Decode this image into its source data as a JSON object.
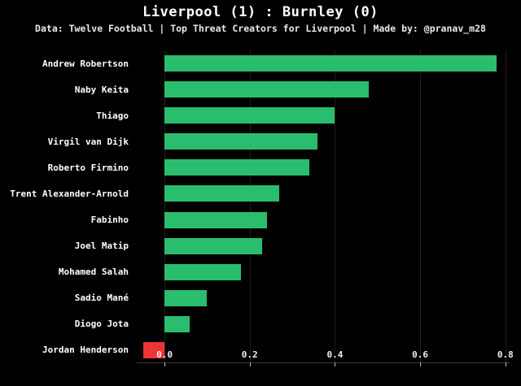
{
  "header": {
    "title": "Liverpool (1) : Burnley (0)",
    "subtitle": "Data: Twelve Football | Top Threat Creators for Liverpool | Made by: @pranav_m28"
  },
  "chart_data": {
    "type": "bar",
    "orientation": "horizontal",
    "title": "Liverpool (1) : Burnley (0)",
    "subtitle": "Data: Twelve Football | Top Threat Creators for Liverpool | Made by: @pranav_m28",
    "categories": [
      "Andrew Robertson",
      "Naby Keita",
      "Thiago",
      "Virgil van Dijk",
      "Roberto Firmino",
      "Trent Alexander-Arnold",
      "Fabinho",
      "Joel Matip",
      "Mohamed Salah",
      "Sadio Mané",
      "Diogo Jota",
      "Jordan Henderson"
    ],
    "values": [
      0.78,
      0.48,
      0.4,
      0.36,
      0.34,
      0.27,
      0.24,
      0.23,
      0.18,
      0.1,
      0.06,
      -0.05
    ],
    "xlabel": "",
    "ylabel": "",
    "xlim": [
      -0.065,
      0.81
    ],
    "xticks": [
      "0.0",
      "0.2",
      "0.4",
      "0.6",
      "0.8"
    ],
    "xtick_values": [
      0.0,
      0.2,
      0.4,
      0.6,
      0.8
    ],
    "grid": "faint-vertical",
    "legend": "none",
    "colors": {
      "positive_bar": "#2bbd6e",
      "negative_bar": "#ee3535",
      "background": "#000000",
      "text": "#ffffff"
    }
  }
}
